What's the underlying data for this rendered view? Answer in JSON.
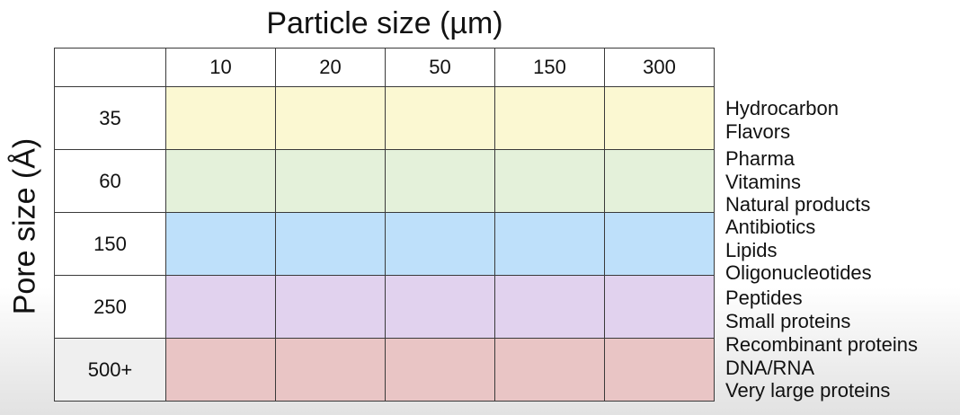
{
  "title": "Particle size (µm)",
  "ylabel": "Pore size (Å)",
  "particle_sizes": [
    "10",
    "20",
    "50",
    "150",
    "300"
  ],
  "rows": [
    {
      "pore": "35",
      "color": "#fbf8d2",
      "applications": [
        "Hydrocarbon",
        "Flavors"
      ]
    },
    {
      "pore": "60",
      "color": "#e4f1da",
      "applications": [
        "Pharma",
        "Vitamins",
        "Natural products"
      ]
    },
    {
      "pore": "150",
      "color": "#bee0fa",
      "applications": [
        "Antibiotics",
        "Lipids",
        "Oligonucleotides"
      ]
    },
    {
      "pore": "250",
      "color": "#e1d2ee",
      "applications": [
        "Peptides",
        "Small proteins"
      ]
    },
    {
      "pore": "500+",
      "color": "#e9c5c5",
      "applications": [
        "Recombinant proteins",
        "DNA/RNA",
        "Very large proteins"
      ]
    }
  ]
}
